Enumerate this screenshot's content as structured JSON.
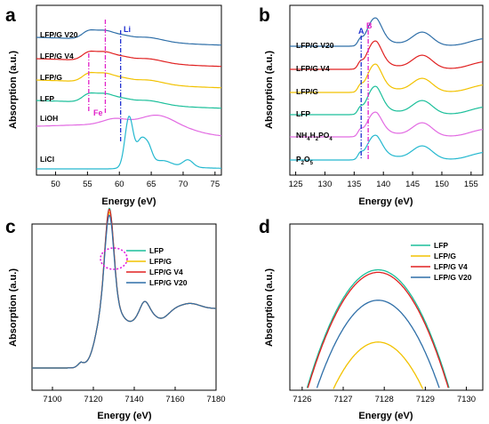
{
  "colors": {
    "teal": "#1bbf9a",
    "yellow": "#f2c200",
    "red": "#e02020",
    "blue": "#2f6fa8",
    "magenta": "#e26ae2",
    "cyan": "#24b8cf",
    "dash_blue": "#1f2fd0",
    "dash_magenta": "#e020c8"
  },
  "chart_data": [
    {
      "id": "a",
      "panel_label": "a",
      "type": "line",
      "xlabel": "Energy (eV)",
      "ylabel": "Absorption (a.u.)",
      "xlim": [
        47,
        76
      ],
      "xticks": [
        50,
        55,
        60,
        65,
        70,
        75
      ],
      "series_labels": [
        "LFP/G V20",
        "LFP/G V4",
        "LFP/G",
        "LFP",
        "LiOH",
        "LiCl"
      ],
      "annotations": [
        {
          "text": "Fe",
          "x": 56.5
        },
        {
          "text": "Li",
          "x": 60
        }
      ],
      "dashed_lines": [
        55.2,
        57.8,
        60.2
      ]
    },
    {
      "id": "b",
      "panel_label": "b",
      "type": "line",
      "xlabel": "Energy (eV)",
      "ylabel": "Absorption (a.u.)",
      "xlim": [
        124,
        157
      ],
      "xticks": [
        125,
        130,
        135,
        140,
        145,
        150,
        155
      ],
      "series_labels": [
        "LFP/G V20",
        "LFP/G V4",
        "LFP/G",
        "LFP",
        "NH4H2PO4",
        "P2O5"
      ],
      "series_labels_sub": {
        "NH4H2PO4": {
          "base": "NH",
          "sub1": "4",
          "mid": "H",
          "sub2": "2",
          "mid2": "PO",
          "sub3": "4"
        },
        "P2O5": {
          "base": "P",
          "sub1": "2",
          "mid": "O",
          "sub2": "5"
        }
      },
      "annotations": [
        {
          "text": "A",
          "x": 136
        },
        {
          "text": "B",
          "x": 137.2
        }
      ],
      "dashed_lines": [
        136.2,
        137.4
      ]
    },
    {
      "id": "c",
      "panel_label": "c",
      "type": "line",
      "xlabel": "Energy (eV)",
      "ylabel": "Absorption (a.u.)",
      "xlim": [
        7090,
        7180
      ],
      "xticks": [
        7100,
        7120,
        7140,
        7160,
        7180
      ],
      "legend": [
        "LFP",
        "LFP/G",
        "LFP/G V4",
        "LFP/G V20"
      ]
    },
    {
      "id": "d",
      "panel_label": "d",
      "type": "line",
      "xlabel": "Energy (eV)",
      "ylabel": "Absorption (a.u.)",
      "xlim": [
        7125.7,
        7130.4
      ],
      "xticks": [
        7126,
        7127,
        7128,
        7129,
        7130
      ],
      "legend": [
        "LFP",
        "LFP/G",
        "LFP/G V4",
        "LFP/G V20"
      ],
      "peaks": [
        {
          "name": "LFP",
          "center": 7127.85,
          "height": 0.95
        },
        {
          "name": "LFP/G V4",
          "center": 7127.85,
          "height": 0.93
        },
        {
          "name": "LFP/G V20",
          "center": 7127.85,
          "height": 0.71
        },
        {
          "name": "LFP/G",
          "center": 7127.85,
          "height": 0.38
        }
      ]
    }
  ]
}
